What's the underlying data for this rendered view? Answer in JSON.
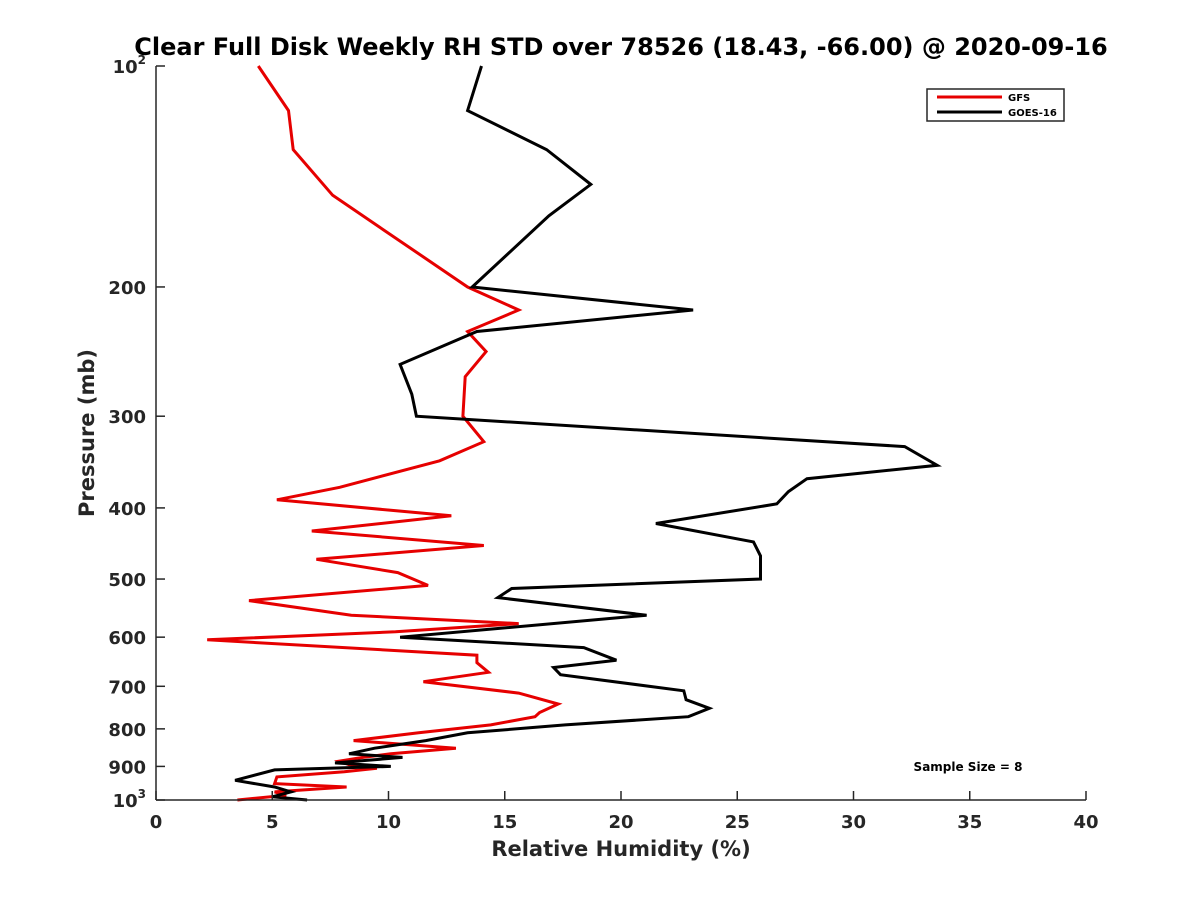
{
  "chart_data": {
    "type": "line",
    "title": "Clear Full Disk Weekly RH STD over 78526 (18.43, -66.00) @ 2020-09-16",
    "xlabel": "Relative Humidity (%)",
    "ylabel": "Pressure (mb)",
    "xlim": [
      0,
      40
    ],
    "ylim": [
      100,
      1000
    ],
    "y_scale": "log",
    "y_reversed": true,
    "grid": false,
    "legend_position": "top-right",
    "x_ticks": [
      "0",
      "5",
      "10",
      "15",
      "20",
      "25",
      "30",
      "35",
      "40"
    ],
    "x_tick_values": [
      0,
      5,
      10,
      15,
      20,
      25,
      30,
      35,
      40
    ],
    "y_ticks": [
      {
        "value": 100,
        "base": "10",
        "sup": "2"
      },
      {
        "value": 200,
        "base": "200",
        "sup": ""
      },
      {
        "value": 300,
        "base": "300",
        "sup": ""
      },
      {
        "value": 400,
        "base": "400",
        "sup": ""
      },
      {
        "value": 500,
        "base": "500",
        "sup": ""
      },
      {
        "value": 600,
        "base": "600",
        "sup": ""
      },
      {
        "value": 700,
        "base": "700",
        "sup": ""
      },
      {
        "value": 800,
        "base": "800",
        "sup": ""
      },
      {
        "value": 900,
        "base": "900",
        "sup": ""
      },
      {
        "value": 1000,
        "base": "10",
        "sup": "3"
      }
    ],
    "annotation": "Sample Size = 8",
    "series": [
      {
        "name": "GFS",
        "color": "#e60000",
        "points": [
          [
            4.4,
            100
          ],
          [
            5.7,
            115
          ],
          [
            5.9,
            130
          ],
          [
            7.6,
            150
          ],
          [
            13.4,
            200
          ],
          [
            15.6,
            215
          ],
          [
            13.4,
            230
          ],
          [
            14.2,
            245
          ],
          [
            13.3,
            265
          ],
          [
            13.2,
            300
          ],
          [
            14.1,
            325
          ],
          [
            12.2,
            345
          ],
          [
            7.9,
            375
          ],
          [
            5.2,
            390
          ],
          [
            12.7,
            410
          ],
          [
            6.7,
            430
          ],
          [
            14.1,
            450
          ],
          [
            6.9,
            470
          ],
          [
            10.4,
            490
          ],
          [
            11.7,
            510
          ],
          [
            4.0,
            535
          ],
          [
            8.4,
            560
          ],
          [
            15.6,
            575
          ],
          [
            10.3,
            590
          ],
          [
            2.2,
            605
          ],
          [
            13.8,
            635
          ],
          [
            13.8,
            650
          ],
          [
            14.3,
            670
          ],
          [
            11.5,
            690
          ],
          [
            15.6,
            715
          ],
          [
            17.3,
            740
          ],
          [
            16.5,
            760
          ],
          [
            16.3,
            770
          ],
          [
            14.4,
            790
          ],
          [
            11.3,
            810
          ],
          [
            8.5,
            830
          ],
          [
            12.9,
            850
          ],
          [
            10.1,
            865
          ],
          [
            8.9,
            875
          ],
          [
            7.9,
            885
          ],
          [
            8.3,
            895
          ],
          [
            9.5,
            905
          ],
          [
            8.1,
            915
          ],
          [
            5.2,
            930
          ],
          [
            5.1,
            950
          ],
          [
            8.2,
            960
          ],
          [
            5.1,
            975
          ],
          [
            5.6,
            985
          ],
          [
            3.5,
            1000
          ]
        ]
      },
      {
        "name": "GOES-16",
        "color": "#000000",
        "points": [
          [
            14.0,
            100
          ],
          [
            13.4,
            115
          ],
          [
            16.8,
            130
          ],
          [
            18.7,
            145
          ],
          [
            16.9,
            160
          ],
          [
            13.6,
            200
          ],
          [
            23.1,
            215
          ],
          [
            13.8,
            230
          ],
          [
            10.5,
            255
          ],
          [
            11.0,
            280
          ],
          [
            11.2,
            300
          ],
          [
            32.2,
            330
          ],
          [
            33.6,
            350
          ],
          [
            28.0,
            365
          ],
          [
            27.2,
            380
          ],
          [
            26.7,
            395
          ],
          [
            21.5,
            420
          ],
          [
            25.7,
            445
          ],
          [
            26.0,
            465
          ],
          [
            26.0,
            500
          ],
          [
            15.3,
            515
          ],
          [
            14.7,
            530
          ],
          [
            21.1,
            560
          ],
          [
            10.5,
            600
          ],
          [
            18.4,
            620
          ],
          [
            19.8,
            645
          ],
          [
            17.1,
            660
          ],
          [
            17.4,
            675
          ],
          [
            22.7,
            710
          ],
          [
            22.8,
            730
          ],
          [
            23.8,
            750
          ],
          [
            22.9,
            770
          ],
          [
            17.6,
            790
          ],
          [
            13.4,
            810
          ],
          [
            11.6,
            830
          ],
          [
            9.4,
            850
          ],
          [
            8.3,
            865
          ],
          [
            10.6,
            875
          ],
          [
            7.7,
            890
          ],
          [
            10.1,
            900
          ],
          [
            5.1,
            910
          ],
          [
            3.4,
            940
          ],
          [
            5.1,
            960
          ],
          [
            5.8,
            975
          ],
          [
            5.0,
            990
          ],
          [
            6.5,
            1000
          ]
        ]
      }
    ]
  }
}
